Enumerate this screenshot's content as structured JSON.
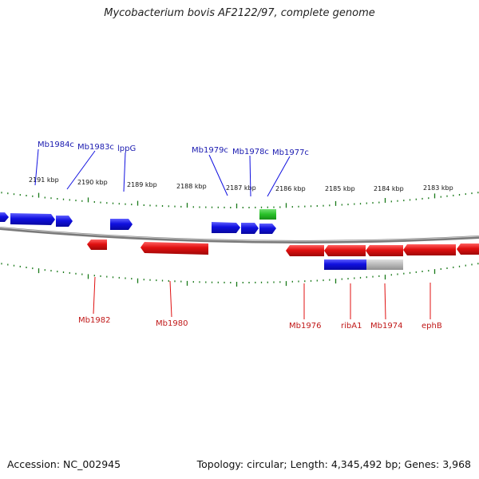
{
  "title": "Mycobacterium bovis AF2122/97, complete genome",
  "footer": {
    "accession": "Accession: NC_002945",
    "topology": "Topology: circular; Length: 4,345,492 bp; Genes: 3,968"
  },
  "colors": {
    "forward": "#1010e0",
    "reverse": "#e01010",
    "rna": "#28c028",
    "other": "#b8b8b8",
    "backbone": "#7a7a7a",
    "ticks": "#1a7a1a",
    "forward_label": "#1a1ab0",
    "reverse_label": "#c01818"
  },
  "ruler_labels": [
    "2191 kbp",
    "2190 kbp",
    "2189 kbp",
    "2188 kbp",
    "2187 kbp",
    "2186 kbp",
    "2185 kbp",
    "2184 kbp",
    "2183 kbp"
  ],
  "forward_gene_labels": [
    "Mb1984c",
    "Mb1983c",
    "lppG",
    "Mb1979c",
    "Mb1978c",
    "Mb1977c"
  ],
  "reverse_gene_labels": [
    "Mb1982",
    "Mb1980",
    "Mb1976",
    "ribA1",
    "Mb1974",
    "ephB"
  ]
}
